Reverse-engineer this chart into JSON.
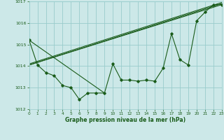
{
  "xlabel": "Graphe pression niveau de la mer (hPa)",
  "bg_color": "#cce8e8",
  "grid_color": "#99cccc",
  "line_color": "#1a5c1a",
  "ylim": [
    1012,
    1017
  ],
  "xlim": [
    0,
    23
  ],
  "yticks": [
    1012,
    1013,
    1014,
    1015,
    1016,
    1017
  ],
  "xticks": [
    0,
    1,
    2,
    3,
    4,
    5,
    6,
    7,
    8,
    9,
    10,
    11,
    12,
    13,
    14,
    15,
    16,
    17,
    18,
    19,
    20,
    21,
    22,
    23
  ],
  "series1": [
    1015.2,
    1014.05,
    1013.7,
    1013.55,
    1013.1,
    1013.0,
    1012.45,
    1012.75,
    1012.75,
    1012.75,
    1014.1,
    1013.35,
    1013.35,
    1013.3,
    1013.35,
    1013.3,
    1013.9,
    1015.5,
    1014.3,
    1014.05,
    1016.1,
    1016.5,
    1016.85,
    1016.85
  ],
  "trend_lines": [
    {
      "x": [
        0,
        23
      ],
      "y": [
        1014.05,
        1016.85
      ]
    },
    {
      "x": [
        0,
        23
      ],
      "y": [
        1014.05,
        1016.9
      ]
    },
    {
      "x": [
        0,
        23
      ],
      "y": [
        1014.1,
        1016.95
      ]
    },
    {
      "x": [
        0,
        9
      ],
      "y": [
        1015.2,
        1012.75
      ]
    }
  ]
}
